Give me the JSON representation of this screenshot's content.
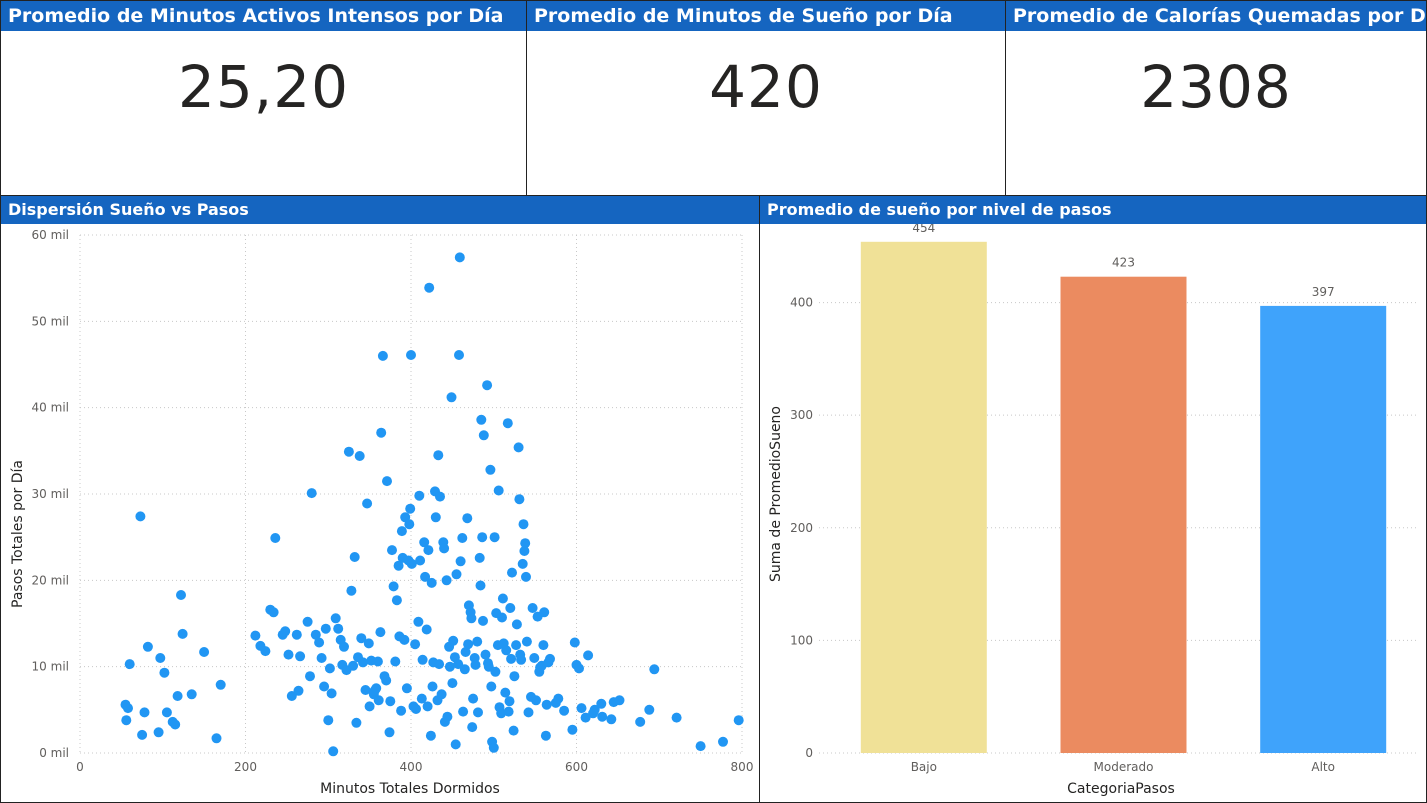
{
  "kpis": [
    {
      "title": "Promedio de Minutos Activos Intensos por Día",
      "value": "25,20"
    },
    {
      "title": "Promedio de Minutos de Sueño por Día",
      "value": "420"
    },
    {
      "title": "Promedio de Calorías Quemadas por Día",
      "value": "2308"
    }
  ],
  "scatter_panel": {
    "title": "Dispersión Sueño vs Pasos"
  },
  "bar_panel": {
    "title": "Promedio de sueño por nivel de pasos"
  },
  "chart_data": [
    {
      "type": "scatter",
      "title": "Dispersión Sueño vs Pasos",
      "xlabel": "Minutos Totales Dormidos",
      "ylabel": "Pasos Totales por Día",
      "xlim": [
        0,
        800
      ],
      "ylim": [
        0,
        60000
      ],
      "xticks": [
        {
          "v": 0,
          "label": "0"
        },
        {
          "v": 200,
          "label": "200"
        },
        {
          "v": 400,
          "label": "400"
        },
        {
          "v": 600,
          "label": "600"
        },
        {
          "v": 800,
          "label": "800"
        }
      ],
      "yticks": [
        {
          "v": 0,
          "label": "0 mil"
        },
        {
          "v": 10000,
          "label": "10 mil"
        },
        {
          "v": 20000,
          "label": "20 mil"
        },
        {
          "v": 30000,
          "label": "30 mil"
        },
        {
          "v": 40000,
          "label": "40 mil"
        },
        {
          "v": 50000,
          "label": "50 mil"
        },
        {
          "v": 60000,
          "label": "60 mil"
        }
      ],
      "grid": true,
      "color": "#2196f3",
      "points": [
        [
          55,
          5600
        ],
        [
          56,
          3800
        ],
        [
          58,
          5200
        ],
        [
          60,
          10300
        ],
        [
          73,
          27400
        ],
        [
          75,
          2100
        ],
        [
          78,
          4700
        ],
        [
          82,
          12300
        ],
        [
          95,
          2400
        ],
        [
          97,
          11000
        ],
        [
          102,
          9300
        ],
        [
          105,
          4700
        ],
        [
          112,
          3600
        ],
        [
          115,
          3300
        ],
        [
          118,
          6600
        ],
        [
          122,
          18300
        ],
        [
          124,
          13800
        ],
        [
          135,
          6800
        ],
        [
          150,
          11700
        ],
        [
          165,
          1700
        ],
        [
          170,
          7900
        ],
        [
          212,
          13600
        ],
        [
          218,
          12400
        ],
        [
          224,
          11800
        ],
        [
          230,
          16600
        ],
        [
          234,
          16300
        ],
        [
          236,
          24900
        ],
        [
          245,
          13700
        ],
        [
          248,
          14100
        ],
        [
          252,
          11400
        ],
        [
          256,
          6600
        ],
        [
          262,
          13700
        ],
        [
          264,
          7200
        ],
        [
          266,
          11200
        ],
        [
          275,
          15200
        ],
        [
          278,
          8900
        ],
        [
          280,
          30100
        ],
        [
          285,
          13700
        ],
        [
          289,
          12800
        ],
        [
          292,
          11000
        ],
        [
          295,
          7700
        ],
        [
          297,
          14400
        ],
        [
          300,
          3800
        ],
        [
          302,
          9800
        ],
        [
          304,
          6900
        ],
        [
          306,
          200
        ],
        [
          309,
          15600
        ],
        [
          312,
          14400
        ],
        [
          315,
          13100
        ],
        [
          317,
          10200
        ],
        [
          319,
          12300
        ],
        [
          322,
          9600
        ],
        [
          325,
          34900
        ],
        [
          328,
          18800
        ],
        [
          330,
          10100
        ],
        [
          332,
          22700
        ],
        [
          334,
          3500
        ],
        [
          336,
          11100
        ],
        [
          338,
          34400
        ],
        [
          340,
          13300
        ],
        [
          342,
          10500
        ],
        [
          345,
          7300
        ],
        [
          347,
          28900
        ],
        [
          349,
          12700
        ],
        [
          350,
          5400
        ],
        [
          352,
          10700
        ],
        [
          355,
          6800
        ],
        [
          356,
          7200
        ],
        [
          358,
          7500
        ],
        [
          360,
          10600
        ],
        [
          361,
          6100
        ],
        [
          363,
          14000
        ],
        [
          364,
          37100
        ],
        [
          366,
          46000
        ],
        [
          368,
          8900
        ],
        [
          370,
          8400
        ],
        [
          371,
          31500
        ],
        [
          374,
          2400
        ],
        [
          375,
          6000
        ],
        [
          377,
          23500
        ],
        [
          379,
          19300
        ],
        [
          381,
          10600
        ],
        [
          383,
          17700
        ],
        [
          385,
          21700
        ],
        [
          386,
          13500
        ],
        [
          388,
          4900
        ],
        [
          389,
          25700
        ],
        [
          390,
          22600
        ],
        [
          392,
          13100
        ],
        [
          393,
          27300
        ],
        [
          395,
          7500
        ],
        [
          397,
          22300
        ],
        [
          398,
          26500
        ],
        [
          399,
          28300
        ],
        [
          400,
          46100
        ],
        [
          401,
          21900
        ],
        [
          403,
          5400
        ],
        [
          405,
          12600
        ],
        [
          406,
          5100
        ],
        [
          409,
          15200
        ],
        [
          410,
          29800
        ],
        [
          411,
          22300
        ],
        [
          413,
          6300
        ],
        [
          414,
          10800
        ],
        [
          416,
          24400
        ],
        [
          417,
          20400
        ],
        [
          419,
          14300
        ],
        [
          420,
          5400
        ],
        [
          421,
          23500
        ],
        [
          422,
          53900
        ],
        [
          424,
          2000
        ],
        [
          425,
          19700
        ],
        [
          426,
          7700
        ],
        [
          427,
          10500
        ],
        [
          429,
          30300
        ],
        [
          430,
          27300
        ],
        [
          432,
          6100
        ],
        [
          433,
          34500
        ],
        [
          434,
          10300
        ],
        [
          435,
          29700
        ],
        [
          437,
          6800
        ],
        [
          439,
          24400
        ],
        [
          440,
          23700
        ],
        [
          441,
          3600
        ],
        [
          443,
          20000
        ],
        [
          444,
          4200
        ],
        [
          446,
          12300
        ],
        [
          447,
          10000
        ],
        [
          449,
          41200
        ],
        [
          450,
          8100
        ],
        [
          451,
          13000
        ],
        [
          453,
          11100
        ],
        [
          454,
          1000
        ],
        [
          455,
          20700
        ],
        [
          457,
          10300
        ],
        [
          458,
          46100
        ],
        [
          459,
          57400
        ],
        [
          460,
          22200
        ],
        [
          462,
          24900
        ],
        [
          463,
          4800
        ],
        [
          465,
          9700
        ],
        [
          466,
          11700
        ],
        [
          468,
          27200
        ],
        [
          469,
          12600
        ],
        [
          470,
          17100
        ],
        [
          472,
          16300
        ],
        [
          473,
          15600
        ],
        [
          474,
          3000
        ],
        [
          475,
          6300
        ],
        [
          477,
          11000
        ],
        [
          478,
          10200
        ],
        [
          480,
          12900
        ],
        [
          481,
          4700
        ],
        [
          483,
          22600
        ],
        [
          484,
          19400
        ],
        [
          485,
          38600
        ],
        [
          486,
          25000
        ],
        [
          487,
          15300
        ],
        [
          488,
          36800
        ],
        [
          490,
          11400
        ],
        [
          492,
          42600
        ],
        [
          493,
          10400
        ],
        [
          494,
          10000
        ],
        [
          496,
          32800
        ],
        [
          497,
          7700
        ],
        [
          498,
          1300
        ],
        [
          500,
          600
        ],
        [
          501,
          25000
        ],
        [
          502,
          9400
        ],
        [
          503,
          16200
        ],
        [
          505,
          12500
        ],
        [
          506,
          30400
        ],
        [
          507,
          5300
        ],
        [
          509,
          4600
        ],
        [
          510,
          15700
        ],
        [
          511,
          17900
        ],
        [
          512,
          12700
        ],
        [
          514,
          7000
        ],
        [
          515,
          11900
        ],
        [
          517,
          38200
        ],
        [
          518,
          4800
        ],
        [
          519,
          6000
        ],
        [
          520,
          16800
        ],
        [
          521,
          10900
        ],
        [
          522,
          20900
        ],
        [
          524,
          2600
        ],
        [
          525,
          8900
        ],
        [
          527,
          12500
        ],
        [
          528,
          14900
        ],
        [
          530,
          35400
        ],
        [
          531,
          29400
        ],
        [
          532,
          11400
        ],
        [
          533,
          10800
        ],
        [
          535,
          21900
        ],
        [
          536,
          26500
        ],
        [
          537,
          23400
        ],
        [
          538,
          24300
        ],
        [
          539,
          20400
        ],
        [
          540,
          12900
        ],
        [
          542,
          4700
        ],
        [
          545,
          6500
        ],
        [
          547,
          16800
        ],
        [
          549,
          11000
        ],
        [
          551,
          6100
        ],
        [
          553,
          15800
        ],
        [
          555,
          9400
        ],
        [
          556,
          9900
        ],
        [
          558,
          10100
        ],
        [
          560,
          12500
        ],
        [
          561,
          16300
        ],
        [
          563,
          2000
        ],
        [
          564,
          5600
        ],
        [
          566,
          10500
        ],
        [
          568,
          10900
        ],
        [
          575,
          5800
        ],
        [
          578,
          6300
        ],
        [
          585,
          4900
        ],
        [
          595,
          2700
        ],
        [
          598,
          12800
        ],
        [
          600,
          10200
        ],
        [
          603,
          9800
        ],
        [
          606,
          5200
        ],
        [
          611,
          4100
        ],
        [
          614,
          11300
        ],
        [
          620,
          4600
        ],
        [
          622,
          5000
        ],
        [
          630,
          5700
        ],
        [
          631,
          4200
        ],
        [
          642,
          3900
        ],
        [
          645,
          5900
        ],
        [
          652,
          6100
        ],
        [
          677,
          3600
        ],
        [
          688,
          5000
        ],
        [
          694,
          9700
        ],
        [
          721,
          4100
        ],
        [
          750,
          800
        ],
        [
          777,
          1300
        ],
        [
          796,
          3800
        ]
      ]
    },
    {
      "type": "bar",
      "title": "Promedio de sueño por nivel de pasos",
      "xlabel": "CategoriaPasos",
      "ylabel": "Suma de PromedioSueno",
      "categories": [
        "Bajo",
        "Moderado",
        "Alto"
      ],
      "values": [
        454,
        423,
        397
      ],
      "value_labels": [
        "454",
        "423",
        "397"
      ],
      "colors": [
        "#f0e197",
        "#eb8b60",
        "#3fa3fb"
      ],
      "ylim": [
        0,
        460
      ],
      "yticks": [
        {
          "v": 0,
          "label": "0"
        },
        {
          "v": 100,
          "label": "100"
        },
        {
          "v": 200,
          "label": "200"
        },
        {
          "v": 300,
          "label": "300"
        },
        {
          "v": 400,
          "label": "400"
        }
      ],
      "grid": true
    }
  ]
}
